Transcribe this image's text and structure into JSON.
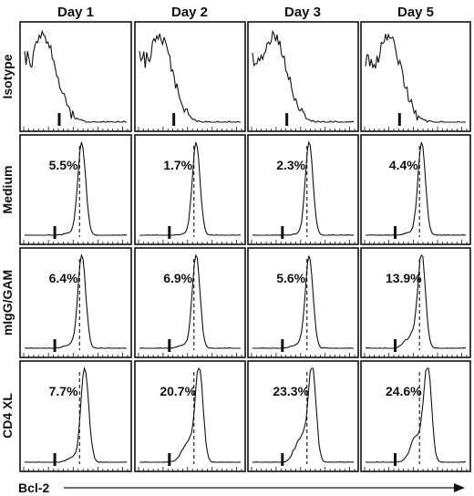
{
  "chart_data": {
    "type": "histogram-grid",
    "columns": [
      "Day 1",
      "Day 2",
      "Day 3",
      "Day 5"
    ],
    "rows": [
      "Isotype",
      "Medium",
      "mIgG/GAM",
      "CD4 XL"
    ],
    "x_axis_label": "Bcl-2",
    "percentages": [
      [
        "",
        "",
        "",
        ""
      ],
      [
        "5.5%",
        "1.7%",
        "2.3%",
        "4.4%"
      ],
      [
        "6.4%",
        "6.9%",
        "5.6%",
        "13.9%"
      ],
      [
        "7.7%",
        "20.7%",
        "23.3%",
        "24.6%"
      ]
    ],
    "shoulder": [
      [
        0,
        0,
        0,
        0
      ],
      [
        0.02,
        0.01,
        0.01,
        0.02
      ],
      [
        0.03,
        0.03,
        0.03,
        0.1
      ],
      [
        0.04,
        0.16,
        0.2,
        0.22
      ]
    ]
  },
  "colors": {
    "line": "#111111",
    "background": "#ffffff"
  }
}
